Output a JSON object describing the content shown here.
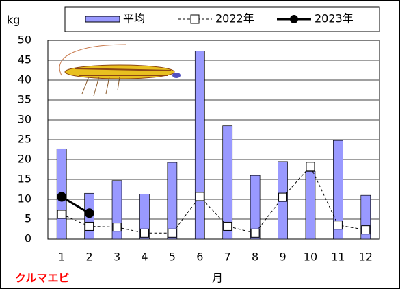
{
  "chart_data": {
    "type": "bar-line",
    "y_unit": "kg",
    "x_label": "月",
    "annotation": "クルマエビ",
    "categories": [
      "1",
      "2",
      "3",
      "4",
      "5",
      "6",
      "7",
      "8",
      "9",
      "10",
      "11",
      "12"
    ],
    "series": [
      {
        "name": "平均",
        "type": "bar",
        "color": "#9999ff",
        "values": [
          22.7,
          11.5,
          14.7,
          11.3,
          19.3,
          47.3,
          28.5,
          16,
          19.5,
          17,
          24.8,
          11
        ]
      },
      {
        "name": "2022年",
        "type": "line",
        "color": "#000000",
        "dashed": true,
        "marker": "square",
        "values": [
          6.2,
          3.2,
          3,
          1.5,
          1.5,
          10.7,
          3.2,
          1.5,
          10.5,
          18.3,
          3.5,
          2.3
        ]
      },
      {
        "name": "2023年",
        "type": "line",
        "color": "#000000",
        "dashed": false,
        "marker": "circle",
        "values": [
          10.6,
          6.5,
          null,
          null,
          null,
          null,
          null,
          null,
          null,
          null,
          null,
          null
        ]
      }
    ],
    "ylim": [
      0,
      50
    ],
    "yticks": [
      0,
      5,
      10,
      15,
      20,
      25,
      30,
      35,
      40,
      45,
      50
    ],
    "grid": true
  }
}
